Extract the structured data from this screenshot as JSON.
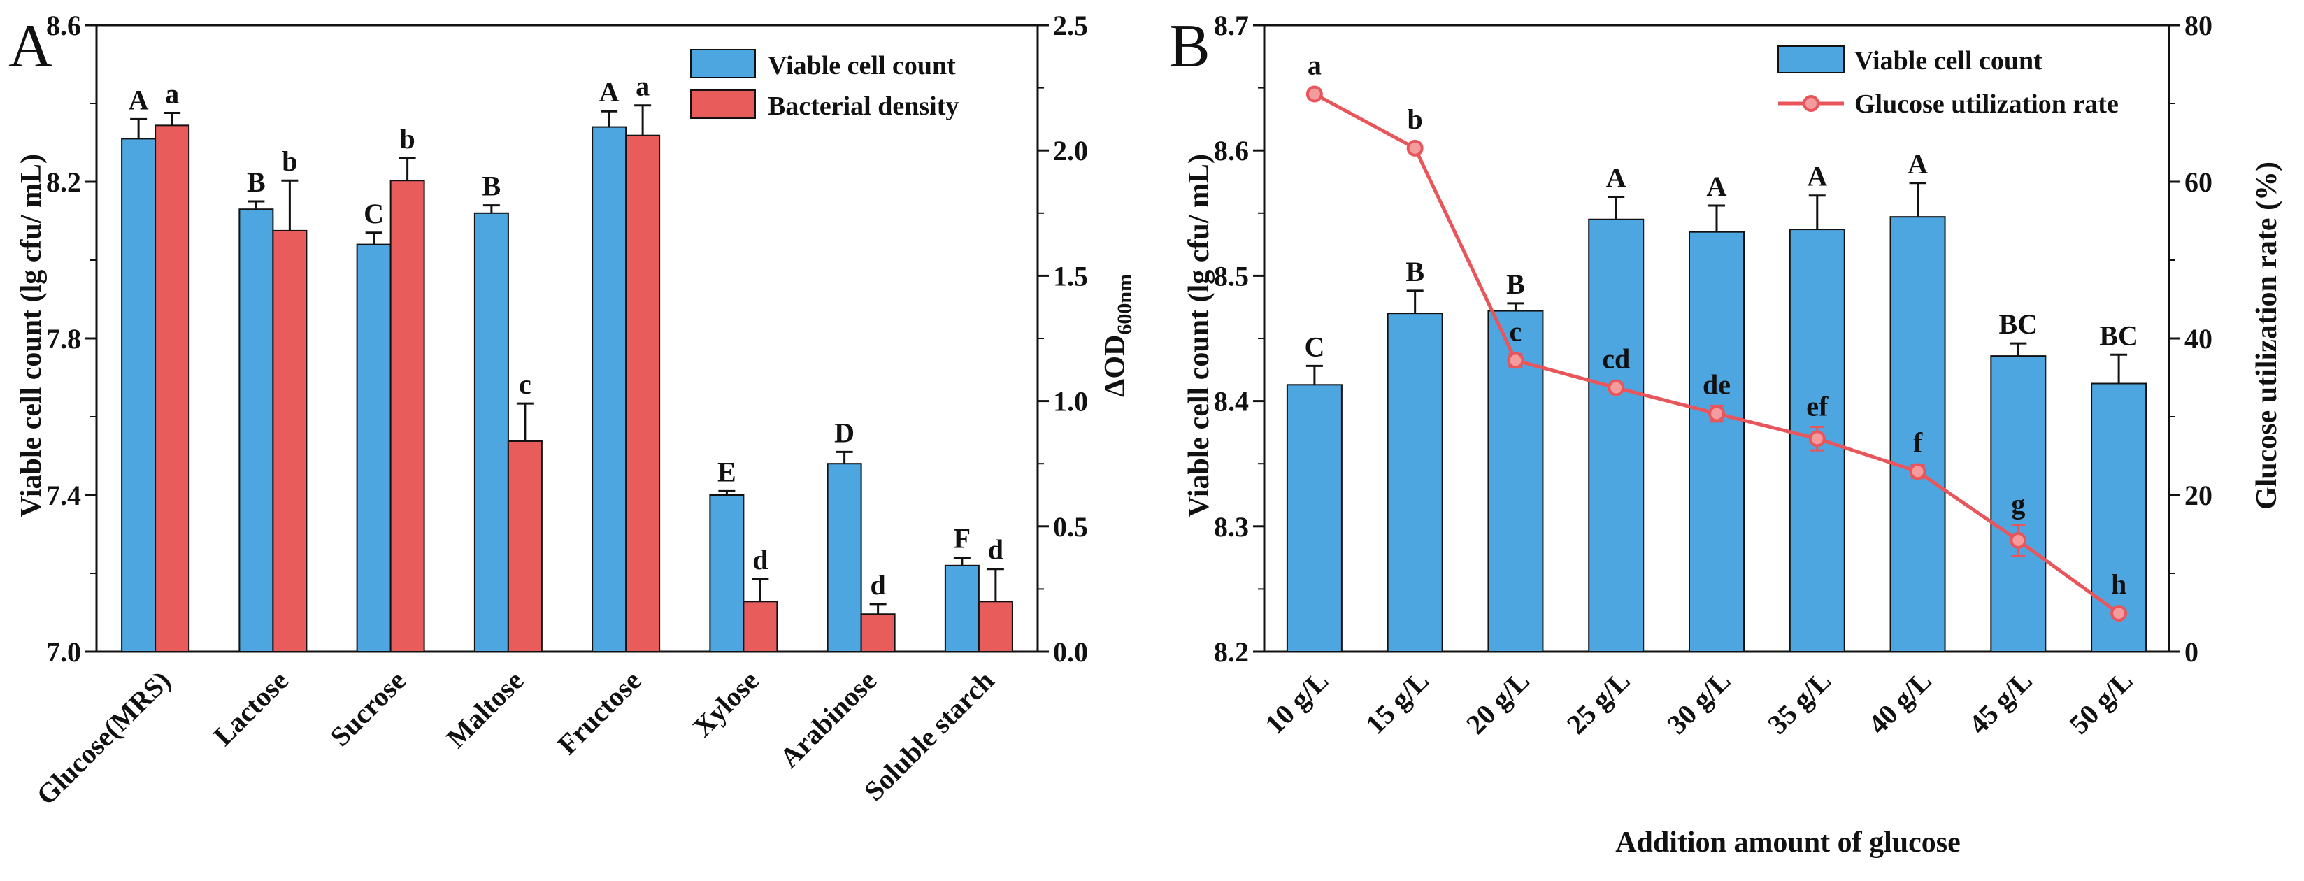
{
  "colors": {
    "blue": "#4ea6e0",
    "red": "#e85c5c",
    "line": "#e8555a",
    "axis": "#111111"
  },
  "chart_data": [
    {
      "panel": "A",
      "type": "bar",
      "title": "",
      "categories": [
        "Glucose(MRS)",
        "Lactose",
        "Sucrose",
        "Maltose",
        "Fructose",
        "Xylose",
        "Arabinose",
        "Soluble starch"
      ],
      "series": [
        {
          "name": "Viable cell count",
          "axis": "left",
          "values": [
            8.31,
            8.13,
            8.04,
            8.12,
            8.34,
            7.4,
            7.48,
            7.22
          ],
          "errors": [
            0.05,
            0.02,
            0.03,
            0.02,
            0.04,
            0.01,
            0.03,
            0.02
          ],
          "labels": [
            "A",
            "B",
            "C",
            "B",
            "A",
            "E",
            "D",
            "F"
          ]
        },
        {
          "name": "Bacterial density",
          "axis": "right",
          "values": [
            2.1,
            1.68,
            1.88,
            0.84,
            2.06,
            0.2,
            0.15,
            0.2
          ],
          "errors": [
            0.05,
            0.2,
            0.09,
            0.15,
            0.12,
            0.09,
            0.04,
            0.13
          ],
          "labels": [
            "a",
            "b",
            "b",
            "c",
            "a",
            "d",
            "d",
            "d"
          ]
        }
      ],
      "ylabel": "Viable cell count (lg cfu/ mL)",
      "ylim": [
        7.0,
        8.6
      ],
      "yticks": [
        "7.0",
        "7.4",
        "7.8",
        "8.2",
        "8.6"
      ],
      "y2label_main": "ΔOD",
      "y2label_sub": "600nm",
      "y2lim": [
        0.0,
        2.5
      ],
      "y2ticks": [
        "0.0",
        "0.5",
        "1.0",
        "1.5",
        "2.0",
        "2.5"
      ],
      "xlabel": "",
      "legend": "top-right"
    },
    {
      "panel": "B",
      "type": "bar",
      "title": "",
      "categories": [
        "10 g/L",
        "15 g/L",
        "20 g/L",
        "25 g/L",
        "30 g/L",
        "35 g/L",
        "40 g/L",
        "45 g/L",
        "50 g/L"
      ],
      "series": [
        {
          "name": "Viable cell count",
          "kind": "bar",
          "axis": "left",
          "values": [
            8.413,
            8.47,
            8.472,
            8.545,
            8.535,
            8.537,
            8.547,
            8.436,
            8.414
          ],
          "errors": [
            0.015,
            0.018,
            0.006,
            0.018,
            0.021,
            0.027,
            0.027,
            0.01,
            0.023
          ],
          "labels": [
            "C",
            "B",
            "B",
            "A",
            "A",
            "A",
            "A",
            "BC",
            "BC"
          ]
        },
        {
          "name": "Glucose utilization rate",
          "kind": "line",
          "axis": "right",
          "values": [
            71.2,
            64.3,
            37.2,
            33.7,
            30.4,
            27.2,
            23.0,
            14.2,
            4.9
          ],
          "errors": [
            0.5,
            0.5,
            0.8,
            0.5,
            1.0,
            1.5,
            0.8,
            2.0,
            0.5
          ],
          "labels": [
            "a",
            "b",
            "c",
            "cd",
            "de",
            "ef",
            "f",
            "g",
            "h"
          ]
        }
      ],
      "ylabel": "Viable cell count (lg cfu/ mL)",
      "ylim": [
        8.2,
        8.7
      ],
      "yticks": [
        "8.2",
        "8.3",
        "8.4",
        "8.5",
        "8.6",
        "8.7"
      ],
      "y2label": "Glucose utilization rate (%)",
      "y2lim": [
        0,
        80
      ],
      "y2ticks": [
        "0",
        "20",
        "40",
        "60",
        "80"
      ],
      "xlabel": "Addition amount of glucose",
      "legend": "top-right"
    }
  ]
}
